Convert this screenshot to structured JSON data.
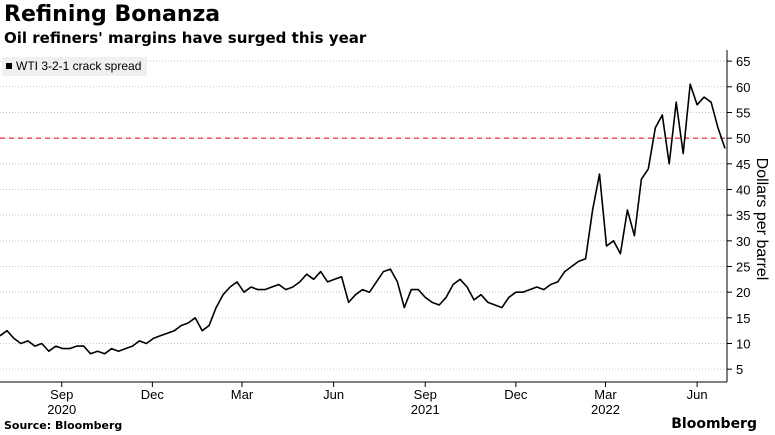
{
  "title": "Refining Bonanza",
  "subtitle": "Oil refiners' margins have surged this year",
  "source": "Source: Bloomberg",
  "brand": "Bloomberg",
  "colors": {
    "line": "#000000",
    "reference": "#e8404a",
    "grid": "#c8c8c8",
    "legend_bg": "#f0f0f0"
  },
  "chart_data": {
    "type": "line",
    "title": "Refining Bonanza",
    "subtitle": "Oil refiners' margins have surged this year",
    "xlabel": "",
    "ylabel": "Dollars per barrel",
    "ylim": [
      2.5,
      66
    ],
    "yticks": [
      5,
      10,
      15,
      20,
      25,
      30,
      35,
      40,
      45,
      50,
      55,
      60,
      65
    ],
    "x_range": [
      "2020-07-01",
      "2022-07-01"
    ],
    "grid": true,
    "legend_position": "top-left",
    "reference_line": {
      "y": 50,
      "style": "dashed"
    },
    "xticks": [
      {
        "date": "2020-09-01",
        "label": "Sep",
        "year": "2020"
      },
      {
        "date": "2020-12-01",
        "label": "Dec",
        "year": ""
      },
      {
        "date": "2021-03-01",
        "label": "Mar",
        "year": ""
      },
      {
        "date": "2021-06-01",
        "label": "Jun",
        "year": ""
      },
      {
        "date": "2021-09-01",
        "label": "Sep",
        "year": "2021"
      },
      {
        "date": "2021-12-01",
        "label": "Dec",
        "year": ""
      },
      {
        "date": "2022-03-01",
        "label": "Mar",
        "year": "2022"
      },
      {
        "date": "2022-06-01",
        "label": "Jun",
        "year": ""
      }
    ],
    "series": [
      {
        "name": "WTI 3-2-1 crack spread",
        "x": [
          "2020-07-01",
          "2020-07-08",
          "2020-07-15",
          "2020-07-22",
          "2020-07-29",
          "2020-08-05",
          "2020-08-12",
          "2020-08-19",
          "2020-08-26",
          "2020-09-02",
          "2020-09-09",
          "2020-09-16",
          "2020-09-23",
          "2020-09-30",
          "2020-10-07",
          "2020-10-14",
          "2020-10-21",
          "2020-10-28",
          "2020-11-04",
          "2020-11-11",
          "2020-11-18",
          "2020-11-25",
          "2020-12-02",
          "2020-12-09",
          "2020-12-16",
          "2020-12-23",
          "2020-12-30",
          "2021-01-06",
          "2021-01-13",
          "2021-01-20",
          "2021-01-27",
          "2021-02-03",
          "2021-02-10",
          "2021-02-17",
          "2021-02-24",
          "2021-03-03",
          "2021-03-10",
          "2021-03-17",
          "2021-03-24",
          "2021-03-31",
          "2021-04-07",
          "2021-04-14",
          "2021-04-21",
          "2021-04-28",
          "2021-05-05",
          "2021-05-12",
          "2021-05-19",
          "2021-05-26",
          "2021-06-02",
          "2021-06-09",
          "2021-06-16",
          "2021-06-23",
          "2021-06-30",
          "2021-07-07",
          "2021-07-14",
          "2021-07-21",
          "2021-07-28",
          "2021-08-04",
          "2021-08-11",
          "2021-08-18",
          "2021-08-25",
          "2021-09-01",
          "2021-09-08",
          "2021-09-15",
          "2021-09-22",
          "2021-09-29",
          "2021-10-06",
          "2021-10-13",
          "2021-10-20",
          "2021-10-27",
          "2021-11-03",
          "2021-11-10",
          "2021-11-17",
          "2021-11-24",
          "2021-12-01",
          "2021-12-08",
          "2021-12-15",
          "2021-12-22",
          "2021-12-29",
          "2022-01-05",
          "2022-01-12",
          "2022-01-19",
          "2022-01-26",
          "2022-02-02",
          "2022-02-09",
          "2022-02-16",
          "2022-02-23",
          "2022-03-02",
          "2022-03-09",
          "2022-03-16",
          "2022-03-23",
          "2022-03-30",
          "2022-04-06",
          "2022-04-13",
          "2022-04-20",
          "2022-04-27",
          "2022-05-04",
          "2022-05-11",
          "2022-05-18",
          "2022-05-25",
          "2022-06-01",
          "2022-06-08",
          "2022-06-15",
          "2022-06-22",
          "2022-06-29"
        ],
        "values": [
          11.5,
          12.5,
          11.0,
          10.0,
          10.5,
          9.5,
          10.0,
          8.5,
          9.5,
          9.0,
          9.0,
          9.5,
          9.5,
          8.0,
          8.5,
          8.0,
          9.0,
          8.5,
          9.0,
          9.5,
          10.5,
          10.0,
          11.0,
          11.5,
          12.0,
          12.5,
          13.5,
          14.0,
          15.0,
          12.5,
          13.5,
          17.0,
          19.5,
          21.0,
          22.0,
          20.0,
          21.0,
          20.5,
          20.5,
          21.0,
          21.5,
          20.5,
          21.0,
          22.0,
          23.5,
          22.5,
          24.0,
          22.0,
          22.5,
          23.0,
          18.0,
          19.5,
          20.5,
          20.0,
          22.0,
          24.0,
          24.5,
          22.0,
          17.0,
          20.5,
          20.5,
          19.0,
          18.0,
          17.5,
          19.0,
          21.5,
          22.5,
          21.0,
          18.5,
          19.5,
          18.0,
          17.5,
          17.0,
          19.0,
          20.0,
          20.0,
          20.5,
          21.0,
          20.5,
          21.5,
          22.0,
          24.0,
          25.0,
          26.0,
          26.5,
          36.0,
          43.0,
          29.0,
          30.0,
          27.5,
          36.0,
          31.0,
          42.0,
          44.0,
          52.0,
          54.5,
          45.0,
          57.0,
          47.0,
          60.5,
          56.5,
          58.0,
          57.0,
          52.0,
          48.0
        ]
      }
    ]
  }
}
